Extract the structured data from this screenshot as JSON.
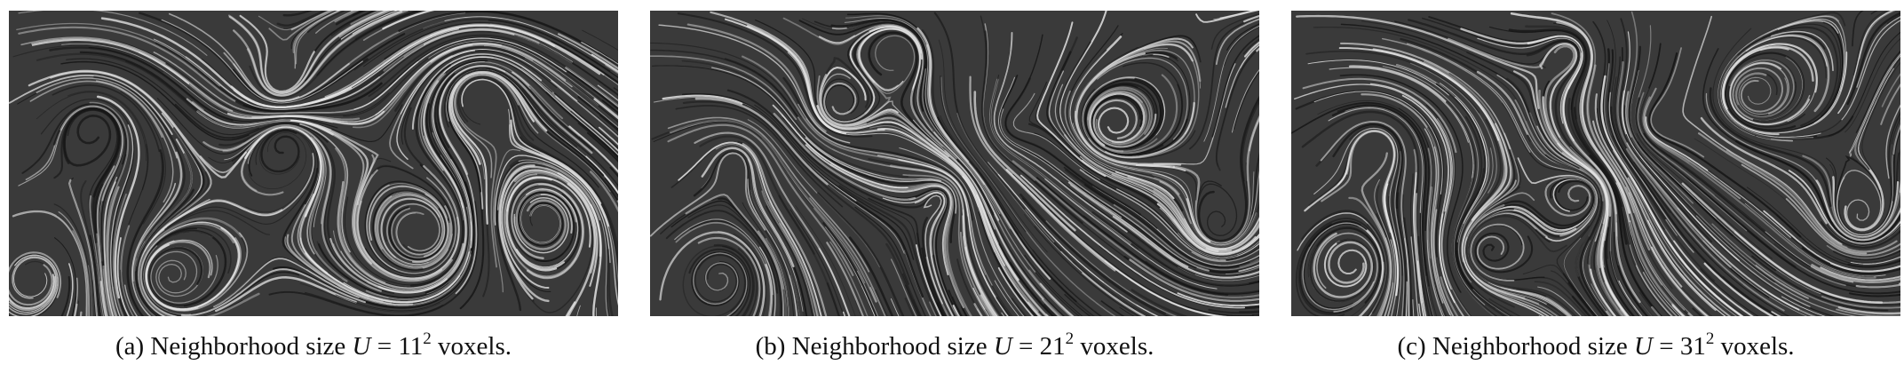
{
  "figure": {
    "panels": [
      {
        "id": "a",
        "label": "(a)",
        "text_before": "Neighborhood size",
        "variable": "U",
        "equals": "=",
        "base": "11",
        "exponent": "2",
        "unit": "voxels."
      },
      {
        "id": "b",
        "label": "(b)",
        "text_before": "Neighborhood size",
        "variable": "U",
        "equals": "=",
        "base": "21",
        "exponent": "2",
        "unit": "voxels."
      },
      {
        "id": "c",
        "label": "(c)",
        "text_before": "Neighborhood size",
        "variable": "U",
        "equals": "=",
        "base": "31",
        "exponent": "2",
        "unit": "voxels."
      }
    ],
    "colors": {
      "background": "#3a3a3a",
      "streak_light": "#e6e6e6",
      "streak_dark": "#151515"
    }
  }
}
